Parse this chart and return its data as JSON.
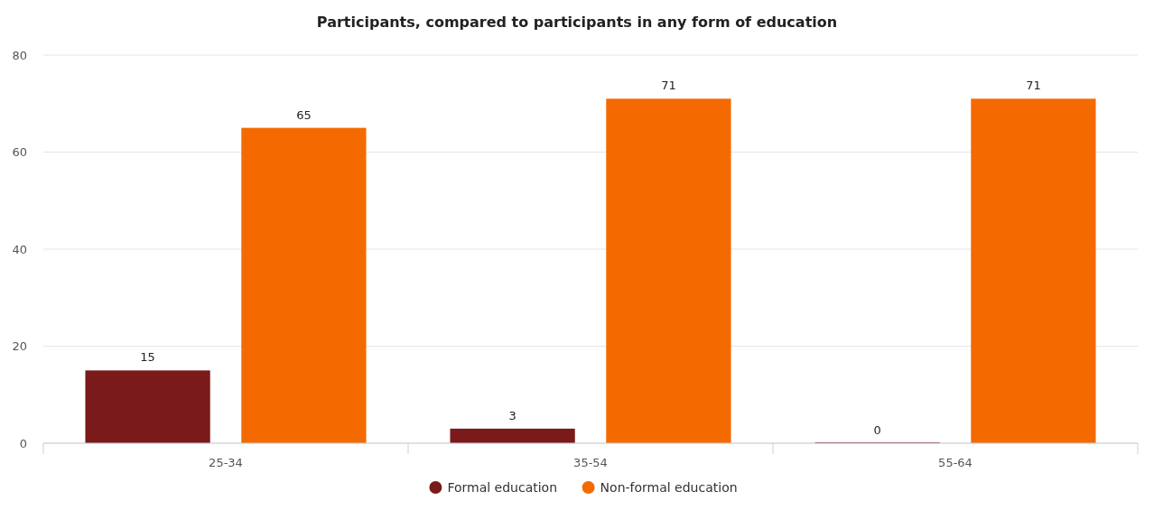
{
  "chart_data": {
    "type": "bar",
    "title": "Participants, compared to participants in any form of education",
    "categories": [
      "25-34",
      "35-54",
      "55-64"
    ],
    "series": [
      {
        "name": "Formal education",
        "color": "#7b1a1a",
        "values": [
          15,
          3,
          0
        ]
      },
      {
        "name": "Non-formal education",
        "color": "#f46a00",
        "values": [
          65,
          71,
          71
        ]
      }
    ],
    "ylim": [
      0,
      80
    ],
    "yticks": [
      0,
      20,
      40,
      60,
      80
    ],
    "grid": "y",
    "legend": "bottom",
    "data_labels": true
  }
}
